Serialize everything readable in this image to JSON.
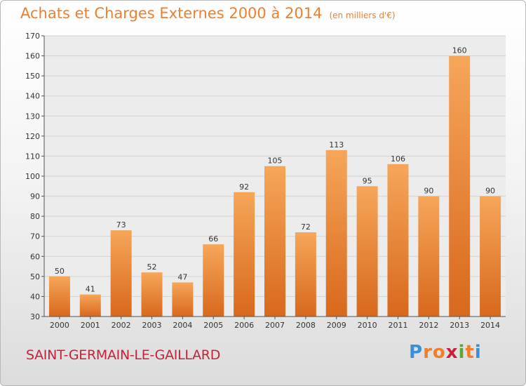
{
  "title": "Achats et Charges Externes 2000 à 2014",
  "unit_note": "(en milliers d'€)",
  "city_label": "SAINT-GERMAIN-LE-GAILLARD",
  "logo": {
    "text": "Proxiti",
    "letters": [
      "P",
      "r",
      "o",
      "x",
      "i",
      "t",
      "i"
    ],
    "colors": [
      "#3a8fd6",
      "#f07e2c",
      "#f07e2c",
      "#c8203a",
      "#5aaa32",
      "#f07e2c",
      "#3a8fd6"
    ]
  },
  "colors": {
    "bar_top": "#f6a65a",
    "bar_bottom": "#d8681c",
    "title": "#f07e2c",
    "city": "#c8203a"
  },
  "chart_data": {
    "type": "bar",
    "title": "Achats et Charges Externes 2000 à 2014",
    "subtitle": "(en milliers d'€)",
    "categories": [
      "2000",
      "2001",
      "2002",
      "2003",
      "2004",
      "2005",
      "2006",
      "2007",
      "2008",
      "2009",
      "2010",
      "2011",
      "2012",
      "2013",
      "2014"
    ],
    "values": [
      50,
      41,
      73,
      52,
      47,
      66,
      92,
      105,
      72,
      113,
      95,
      106,
      90,
      160,
      90
    ],
    "ylim": [
      30,
      170
    ],
    "yticks": [
      30,
      40,
      50,
      60,
      70,
      80,
      90,
      100,
      110,
      120,
      130,
      140,
      150,
      160,
      170
    ],
    "grid": true,
    "xlabel": "",
    "ylabel": ""
  }
}
